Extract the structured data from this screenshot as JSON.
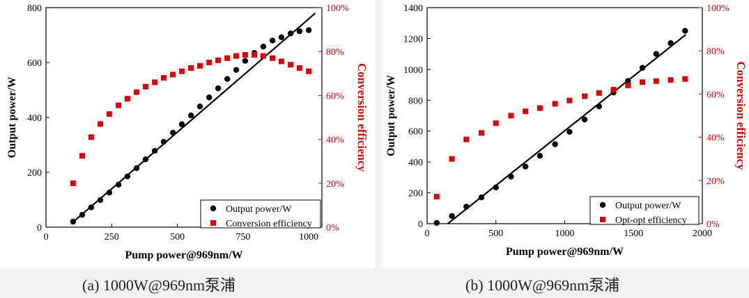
{
  "colors": {
    "left_axis": "#000000",
    "right_axis": "#e00000",
    "fit_line": "#000000"
  },
  "chart_data": [
    {
      "type": "scatter",
      "caption": "(a) 1000W@969nm泵浦",
      "xlabel": "Pump power@969nm/W",
      "ylabel": "Output power/W",
      "y2label": "Conversion efficiency",
      "xlim": [
        0,
        1050
      ],
      "ylim": [
        0,
        800
      ],
      "y2lim": [
        0,
        1.0
      ],
      "xticks": [
        "0",
        "250",
        "500",
        "750",
        "1000"
      ],
      "xtick_values": [
        0,
        250,
        500,
        750,
        1000
      ],
      "yticks": [
        "0",
        "200",
        "400",
        "600",
        "800"
      ],
      "ytick_values": [
        0,
        200,
        400,
        600,
        800
      ],
      "y2ticks": [
        "0%",
        "20%",
        "40%",
        "60%",
        "80%",
        "100%"
      ],
      "y2tick_values": [
        0,
        0.2,
        0.4,
        0.6,
        0.8,
        1.0
      ],
      "grid": false,
      "legend_position": "bottom-right",
      "fit_line": {
        "x": [
          105,
          1025
        ],
        "y": [
          20,
          780
        ]
      },
      "series": [
        {
          "name": "Output power/W",
          "axis": "left",
          "marker": "circle",
          "x": [
            103,
            138,
            172,
            207,
            241,
            276,
            310,
            345,
            379,
            414,
            448,
            483,
            517,
            552,
            586,
            621,
            655,
            690,
            724,
            758,
            793,
            827,
            862,
            896,
            931,
            965,
            1000
          ],
          "y": [
            20,
            45,
            72,
            99,
            126,
            155,
            185,
            215,
            247,
            278,
            311,
            344,
            375,
            407,
            440,
            473,
            506,
            540,
            573,
            606,
            635,
            658,
            680,
            692,
            706,
            714,
            718
          ]
        },
        {
          "name": "Conversion efficiency",
          "axis": "right",
          "marker": "square",
          "x": [
            103,
            138,
            172,
            207,
            241,
            276,
            310,
            345,
            379,
            414,
            448,
            483,
            517,
            552,
            586,
            621,
            655,
            690,
            724,
            758,
            793,
            827,
            862,
            896,
            931,
            965,
            1000
          ],
          "y": [
            0.2,
            0.325,
            0.41,
            0.47,
            0.515,
            0.555,
            0.585,
            0.615,
            0.64,
            0.66,
            0.68,
            0.695,
            0.71,
            0.725,
            0.735,
            0.75,
            0.76,
            0.77,
            0.78,
            0.785,
            0.785,
            0.78,
            0.77,
            0.755,
            0.74,
            0.725,
            0.71
          ]
        }
      ]
    },
    {
      "type": "scatter",
      "caption": "(b) 1000W@969nm泵浦",
      "xlabel": "Pump power@969nm/W",
      "ylabel": "Output power/W",
      "y2label": "Conversion efficiency",
      "xlim": [
        0,
        2000
      ],
      "ylim": [
        0,
        1400
      ],
      "y2lim": [
        0,
        1.0
      ],
      "xticks": [
        "0",
        "500",
        "1000",
        "1500",
        "2000"
      ],
      "xtick_values": [
        0,
        500,
        1000,
        1500,
        2000
      ],
      "yticks": [
        "0",
        "200",
        "400",
        "600",
        "800",
        "1000",
        "1200",
        "1400"
      ],
      "ytick_values": [
        0,
        200,
        400,
        600,
        800,
        1000,
        1200,
        1400
      ],
      "y2ticks": [
        "0%",
        "20%",
        "40%",
        "60%",
        "80%",
        "100%"
      ],
      "y2tick_values": [
        0,
        0.2,
        0.4,
        0.6,
        0.8,
        1.0
      ],
      "grid": false,
      "legend_position": "bottom-right",
      "fit_line": {
        "x": [
          150,
          1880
        ],
        "y": [
          0,
          1225
        ]
      },
      "series": [
        {
          "name": "Output power/W",
          "axis": "left",
          "marker": "circle",
          "x": [
            70,
            180,
            285,
            395,
            500,
            610,
            715,
            820,
            930,
            1035,
            1145,
            1250,
            1355,
            1460,
            1565,
            1665,
            1770,
            1875
          ],
          "y": [
            5,
            50,
            110,
            170,
            235,
            305,
            370,
            440,
            515,
            595,
            675,
            760,
            850,
            925,
            1010,
            1100,
            1170,
            1250
          ]
        },
        {
          "name": "Opt-opt efficiency",
          "axis": "right",
          "marker": "square",
          "x": [
            70,
            180,
            285,
            395,
            500,
            610,
            715,
            820,
            930,
            1035,
            1145,
            1250,
            1355,
            1460,
            1565,
            1665,
            1770,
            1875
          ],
          "y": [
            0.125,
            0.3,
            0.39,
            0.42,
            0.465,
            0.5,
            0.52,
            0.535,
            0.555,
            0.57,
            0.59,
            0.605,
            0.62,
            0.64,
            0.655,
            0.66,
            0.665,
            0.67
          ]
        }
      ]
    }
  ]
}
